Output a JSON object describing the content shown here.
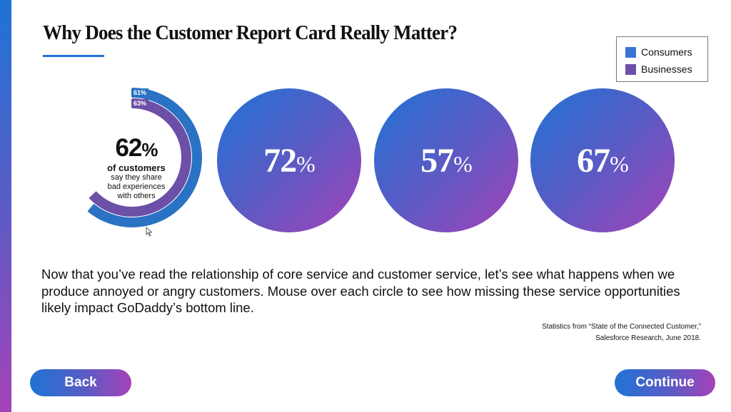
{
  "title": "Why Does the Customer Report Card Really Matter?",
  "legend": {
    "items": [
      {
        "label": "Consumers",
        "color": "#3b74cf"
      },
      {
        "label": "Businesses",
        "color": "#6a50a8"
      }
    ]
  },
  "donut": {
    "outer_label": "61%",
    "outer_value": 61,
    "outer_color": "#2a72c4",
    "inner_label": "63%",
    "inner_value": 63,
    "inner_color": "#6c4fa6",
    "headline_number": "62",
    "headline_pct": "%",
    "line1": "of customers",
    "line2": "say they share",
    "line3": "bad experiences",
    "line4": "with others"
  },
  "circles": [
    {
      "number": "72",
      "pct": "%"
    },
    {
      "number": "57",
      "pct": "%"
    },
    {
      "number": "67",
      "pct": "%"
    }
  ],
  "body_text": "Now that you’ve read the relationship of core service and customer service, let’s see what happens when we produce annoyed or angry customers. Mouse over each circle to see how missing these service opportunities likely impact GoDaddy’s bottom line.",
  "citation": {
    "line1": "Statistics from “State of the Connected Customer,”",
    "line2": "Salesforce Research, June 2018."
  },
  "buttons": {
    "back": "Back",
    "continue": "Continue"
  }
}
